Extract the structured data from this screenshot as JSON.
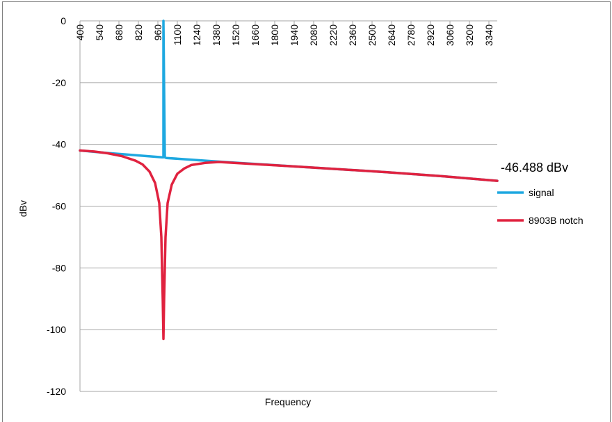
{
  "chart_data": {
    "type": "line",
    "xlabel": "Frequency",
    "ylabel": "dBv",
    "ylim": [
      -120,
      0
    ],
    "y_ticks": [
      0,
      -20,
      -40,
      -60,
      -80,
      -100,
      -120
    ],
    "x_ticks": [
      400,
      540,
      680,
      820,
      960,
      1100,
      1240,
      1380,
      1520,
      1660,
      1800,
      1940,
      2080,
      2220,
      2360,
      2500,
      2640,
      2780,
      2920,
      3060,
      3200,
      3340
    ],
    "x_tick_labels": [
      "400",
      "540",
      "680",
      "820",
      "960",
      "1100",
      "1240",
      "1380",
      "1520",
      "1660",
      "1800",
      "1940",
      "2080",
      "2220",
      "2360",
      "2500",
      "2640",
      "2780",
      "2920",
      "3060",
      "3200",
      "3340"
    ],
    "xlim": [
      400,
      3400
    ],
    "annotation": "-46.488 dBv",
    "legend_position": "right",
    "grid": "horizontal",
    "series": [
      {
        "name": "signal",
        "color": "#1ea8e0",
        "x": [
          400,
          600,
          800,
          990,
          1000,
          1000,
          1010,
          1020,
          1400,
          2000,
          2600,
          3000,
          3400
        ],
        "y": [
          -42,
          -42.8,
          -43.5,
          -44.2,
          -44.2,
          0,
          -44.2,
          -44.4,
          -45.6,
          -47.3,
          -49.0,
          -50.3,
          -51.8
        ]
      },
      {
        "name": "8903B notch",
        "color": "#e0223f",
        "x": [
          400,
          500,
          600,
          700,
          800,
          850,
          900,
          940,
          970,
          985,
          995,
          1000,
          1005,
          1015,
          1030,
          1060,
          1100,
          1150,
          1200,
          1300,
          1400,
          2000,
          2600,
          3000,
          3400
        ],
        "y": [
          -42,
          -42.3,
          -42.9,
          -43.8,
          -45.3,
          -46.5,
          -48.8,
          -52.5,
          -59,
          -70,
          -90,
          -103,
          -90,
          -70,
          -59,
          -53,
          -49.5,
          -47.8,
          -46.7,
          -46,
          -45.7,
          -47.3,
          -49.0,
          -50.3,
          -51.8
        ]
      }
    ]
  }
}
